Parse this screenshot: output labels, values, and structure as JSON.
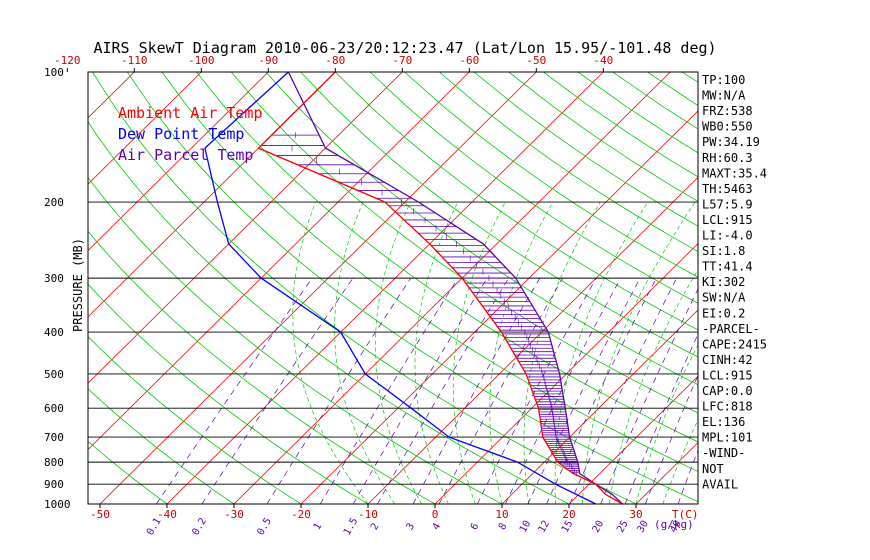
{
  "chart_data": {
    "type": "line",
    "title": "AIRS SkewT Diagram 2010-06-23/20:12:23.47 (Lat/Lon 15.95/-101.48 deg)",
    "ylabel": "PRESSURE (MB)",
    "top_axis_ticks": [
      -120,
      -110,
      -100,
      -90,
      -80,
      -70,
      -60,
      -50,
      -40
    ],
    "bottom_axis_ticks": [
      -50,
      -40,
      -30,
      -20,
      -10,
      0,
      10,
      20,
      30
    ],
    "bottom_axis_unit": "T(C)",
    "pressure_ticks": [
      100,
      200,
      300,
      400,
      500,
      600,
      700,
      800,
      900,
      1000
    ],
    "mixing_ratio_labels": [
      "0.1",
      "0.2",
      "0.5",
      "1",
      "1.5",
      "2",
      "3",
      "4",
      "6",
      "8",
      "10",
      "12",
      "15",
      "20",
      "25",
      "30",
      "40"
    ],
    "mixing_ratio_unit": "(g/kg)",
    "legend": [
      {
        "name": "Ambient Air Temp",
        "color": "#ff0000"
      },
      {
        "name": "Dew Point Temp",
        "color": "#0000ff"
      },
      {
        "name": "Air Parcel Temp",
        "color": "#5f00b0"
      }
    ],
    "series": [
      {
        "name": "Ambient Air Temp",
        "pressure": [
          100,
          150,
          200,
          250,
          300,
          400,
          500,
          600,
          700,
          800,
          850,
          900,
          950,
          1000
        ],
        "temp": [
          -80,
          -80,
          -53,
          -40,
          -30,
          -16,
          -6,
          1,
          6,
          12,
          16,
          21,
          24,
          28
        ]
      },
      {
        "name": "Dew Point Temp",
        "pressure": [
          100,
          150,
          200,
          250,
          300,
          400,
          500,
          600,
          700,
          800,
          900,
          1000
        ],
        "temp": [
          -87,
          -88,
          -78,
          -70,
          -60,
          -40,
          -30,
          -18,
          -8,
          6,
          15,
          24
        ]
      },
      {
        "name": "Air Parcel Temp",
        "pressure": [
          100,
          150,
          200,
          250,
          300,
          400,
          500,
          600,
          700,
          800,
          850,
          900,
          950,
          1000
        ],
        "temp": [
          -87,
          -70,
          -48,
          -32,
          -22,
          -9,
          -1,
          5,
          10,
          15,
          17,
          21,
          25,
          28
        ]
      }
    ],
    "colors": {
      "dry_adiabats": "#00cc00",
      "isotherms": "#ff0000",
      "moist_adiabats": "#00cc00",
      "mixing_ratio": "#5f00b0"
    }
  },
  "indices": [
    "TP:100",
    "MW:N/A",
    "FRZ:538",
    "WB0:550",
    "PW:34.19",
    "RH:60.3",
    "MAXT:35.4",
    "TH:5463",
    "L57:5.9",
    "LCL:915",
    "LI:-4.0",
    "SI:1.8",
    "TT:41.4",
    "KI:302",
    "SW:N/A",
    "EI:0.2",
    "-PARCEL-",
    "CAPE:2415",
    "CINH:42",
    "LCL:915",
    "CAP:0.0",
    "LFC:818",
    "EL:136",
    "MPL:101",
    "-WIND-",
    "NOT",
    "AVAIL"
  ]
}
